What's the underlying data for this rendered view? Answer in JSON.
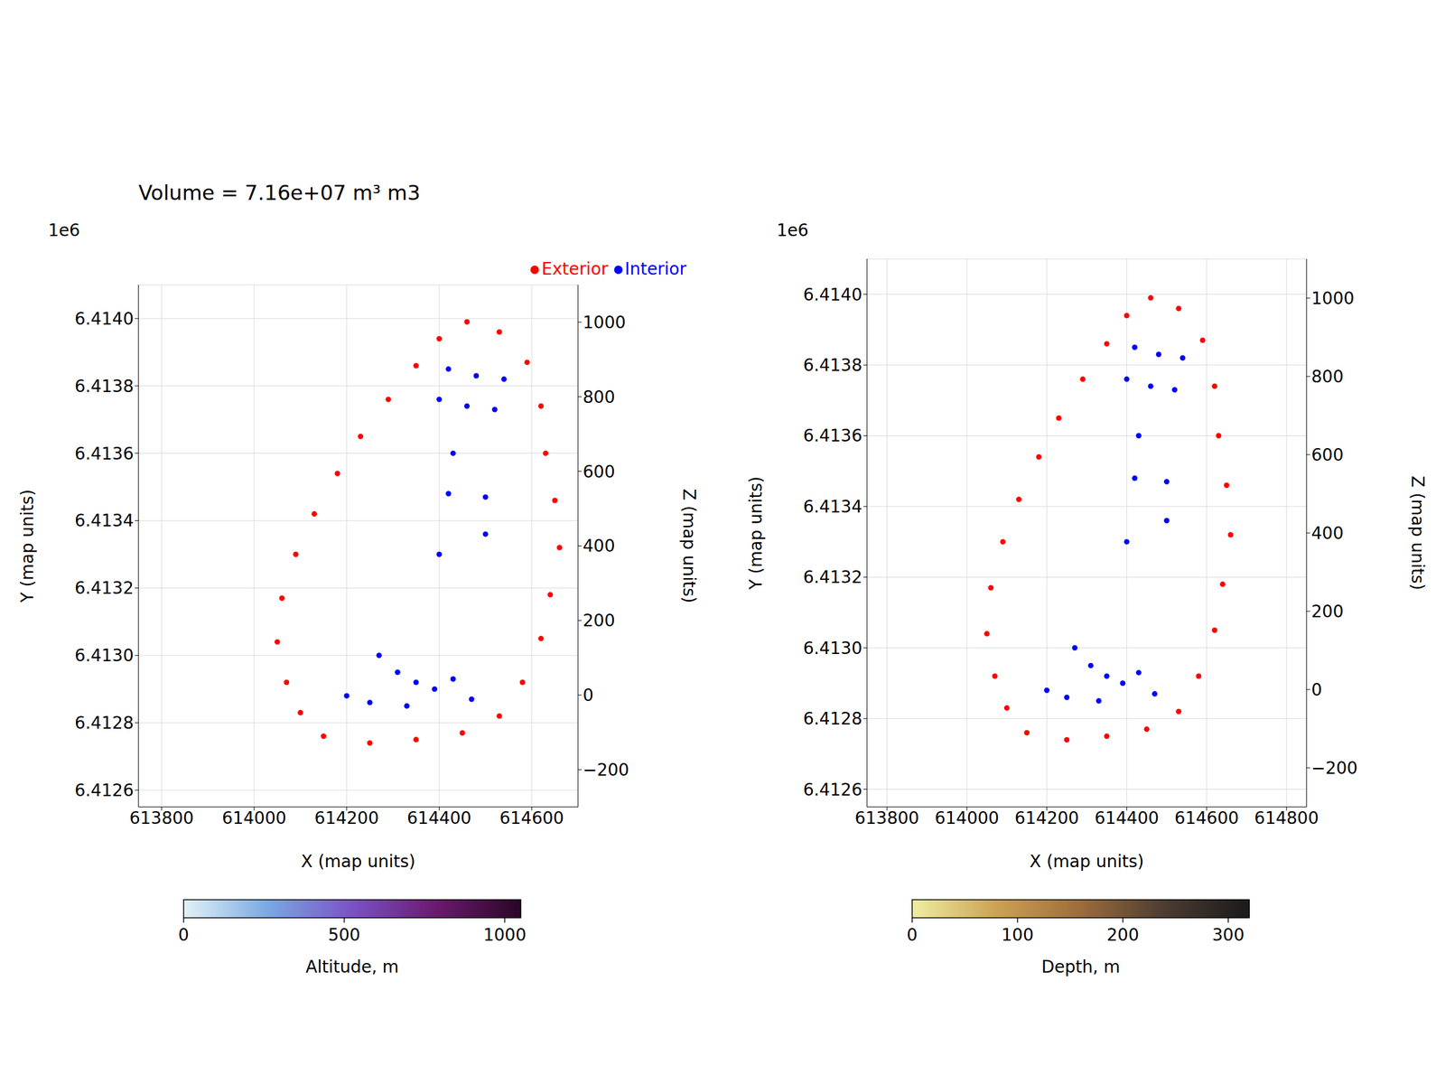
{
  "chart_data": [
    {
      "type": "scatter",
      "title": "Volume = 7.16e+07 m³ m3",
      "xlabel": "X (map units)",
      "ylabel": "Y (map units)",
      "zlabel": "Z (map units)",
      "annotations": [
        "1e6"
      ],
      "xlim": [
        613750,
        614700
      ],
      "xticks": [
        613800,
        614000,
        614200,
        614400,
        614600
      ],
      "ylim": [
        6412550,
        6414100
      ],
      "yticks": [
        {
          "value": 6412600,
          "label": "6.4126"
        },
        {
          "value": 6412800,
          "label": "6.4128"
        },
        {
          "value": 6413000,
          "label": "6.4130"
        },
        {
          "value": 6413200,
          "label": "6.4132"
        },
        {
          "value": 6413400,
          "label": "6.4134"
        },
        {
          "value": 6413600,
          "label": "6.4136"
        },
        {
          "value": 6413800,
          "label": "6.4138"
        },
        {
          "value": 6414000,
          "label": "6.4140"
        }
      ],
      "zlim": [
        -300,
        1100
      ],
      "zticks": [
        {
          "value": -200,
          "label": "−200"
        },
        0,
        200,
        400,
        600,
        800,
        1000
      ],
      "grid": true,
      "legend": "upper right",
      "series": [
        {
          "name": "Exterior",
          "color": "#ff0000",
          "marker": "o",
          "x": [
            614150,
            614250,
            614350,
            614450,
            614530,
            614580,
            614620,
            614640,
            614660,
            614650,
            614630,
            614620,
            614590,
            614530,
            614460,
            614400,
            614350,
            614290,
            614230,
            614180,
            614130,
            614090,
            614060,
            614050,
            614070,
            614100
          ],
          "y": [
            6412760,
            6412740,
            6412750,
            6412770,
            6412820,
            6412920,
            6413050,
            6413180,
            6413320,
            6413460,
            6413600,
            6413740,
            6413870,
            6413960,
            6413990,
            6413940,
            6413860,
            6413760,
            6413650,
            6413540,
            6413420,
            6413300,
            6413170,
            6413040,
            6412920,
            6412830
          ]
        },
        {
          "name": "Interior",
          "color": "#0000ff",
          "marker": "o",
          "x": [
            614420,
            614480,
            614540,
            614400,
            614460,
            614520,
            614430,
            614420,
            614500,
            614500,
            614400,
            614270,
            614310,
            614350,
            614390,
            614430,
            614200,
            614250,
            614330,
            614470
          ],
          "y": [
            6413850,
            6413830,
            6413820,
            6413760,
            6413740,
            6413730,
            6413600,
            6413480,
            6413470,
            6413360,
            6413300,
            6413000,
            6412950,
            6412920,
            6412900,
            6412930,
            6412880,
            6412860,
            6412850,
            6412870
          ]
        }
      ],
      "colorbar": {
        "label": "Altitude, m",
        "range": [
          0,
          1050
        ],
        "ticks": [
          0,
          500,
          1000
        ],
        "colors": [
          "#e2f2f5",
          "#7aa8e2",
          "#7b52c6",
          "#6a1a6e",
          "#2a0626"
        ]
      }
    },
    {
      "type": "scatter",
      "xlabel": "X (map units)",
      "ylabel": "Y (map units)",
      "zlabel": "Z (map units)",
      "annotations": [
        "1e6"
      ],
      "xlim": [
        613750,
        614850
      ],
      "xticks": [
        613800,
        614000,
        614200,
        614400,
        614600,
        614800
      ],
      "ylim": [
        6412550,
        6414100
      ],
      "yticks": [
        {
          "value": 6412600,
          "label": "6.4126"
        },
        {
          "value": 6412800,
          "label": "6.4128"
        },
        {
          "value": 6413000,
          "label": "6.4130"
        },
        {
          "value": 6413200,
          "label": "6.4132"
        },
        {
          "value": 6413400,
          "label": "6.4134"
        },
        {
          "value": 6413600,
          "label": "6.4136"
        },
        {
          "value": 6413800,
          "label": "6.4138"
        },
        {
          "value": 6414000,
          "label": "6.4140"
        }
      ],
      "zlim": [
        -300,
        1100
      ],
      "zticks": [
        {
          "value": -200,
          "label": "−200"
        },
        0,
        200,
        400,
        600,
        800,
        1000
      ],
      "grid": true,
      "series": [
        {
          "name": "Exterior",
          "color": "#ff0000",
          "marker": "o",
          "x": [
            614150,
            614250,
            614350,
            614450,
            614530,
            614580,
            614620,
            614640,
            614660,
            614650,
            614630,
            614620,
            614590,
            614530,
            614460,
            614400,
            614350,
            614290,
            614230,
            614180,
            614130,
            614090,
            614060,
            614050,
            614070,
            614100
          ],
          "y": [
            6412760,
            6412740,
            6412750,
            6412770,
            6412820,
            6412920,
            6413050,
            6413180,
            6413320,
            6413460,
            6413600,
            6413740,
            6413870,
            6413960,
            6413990,
            6413940,
            6413860,
            6413760,
            6413650,
            6413540,
            6413420,
            6413300,
            6413170,
            6413040,
            6412920,
            6412830
          ]
        },
        {
          "name": "Interior",
          "color": "#0000ff",
          "marker": "o",
          "x": [
            614420,
            614480,
            614540,
            614400,
            614460,
            614520,
            614430,
            614420,
            614500,
            614500,
            614400,
            614270,
            614310,
            614350,
            614390,
            614430,
            614200,
            614250,
            614330,
            614470
          ],
          "y": [
            6413850,
            6413830,
            6413820,
            6413760,
            6413740,
            6413730,
            6413600,
            6413480,
            6413470,
            6413360,
            6413300,
            6413000,
            6412950,
            6412920,
            6412900,
            6412930,
            6412880,
            6412860,
            6412850,
            6412870
          ]
        }
      ],
      "colorbar": {
        "label": "Depth, m",
        "range": [
          0,
          320
        ],
        "ticks": [
          0,
          100,
          200,
          300
        ],
        "colors": [
          "#eeeea2",
          "#cba252",
          "#9c6c3c",
          "#4c3c32",
          "#1a1a1a"
        ]
      }
    }
  ]
}
